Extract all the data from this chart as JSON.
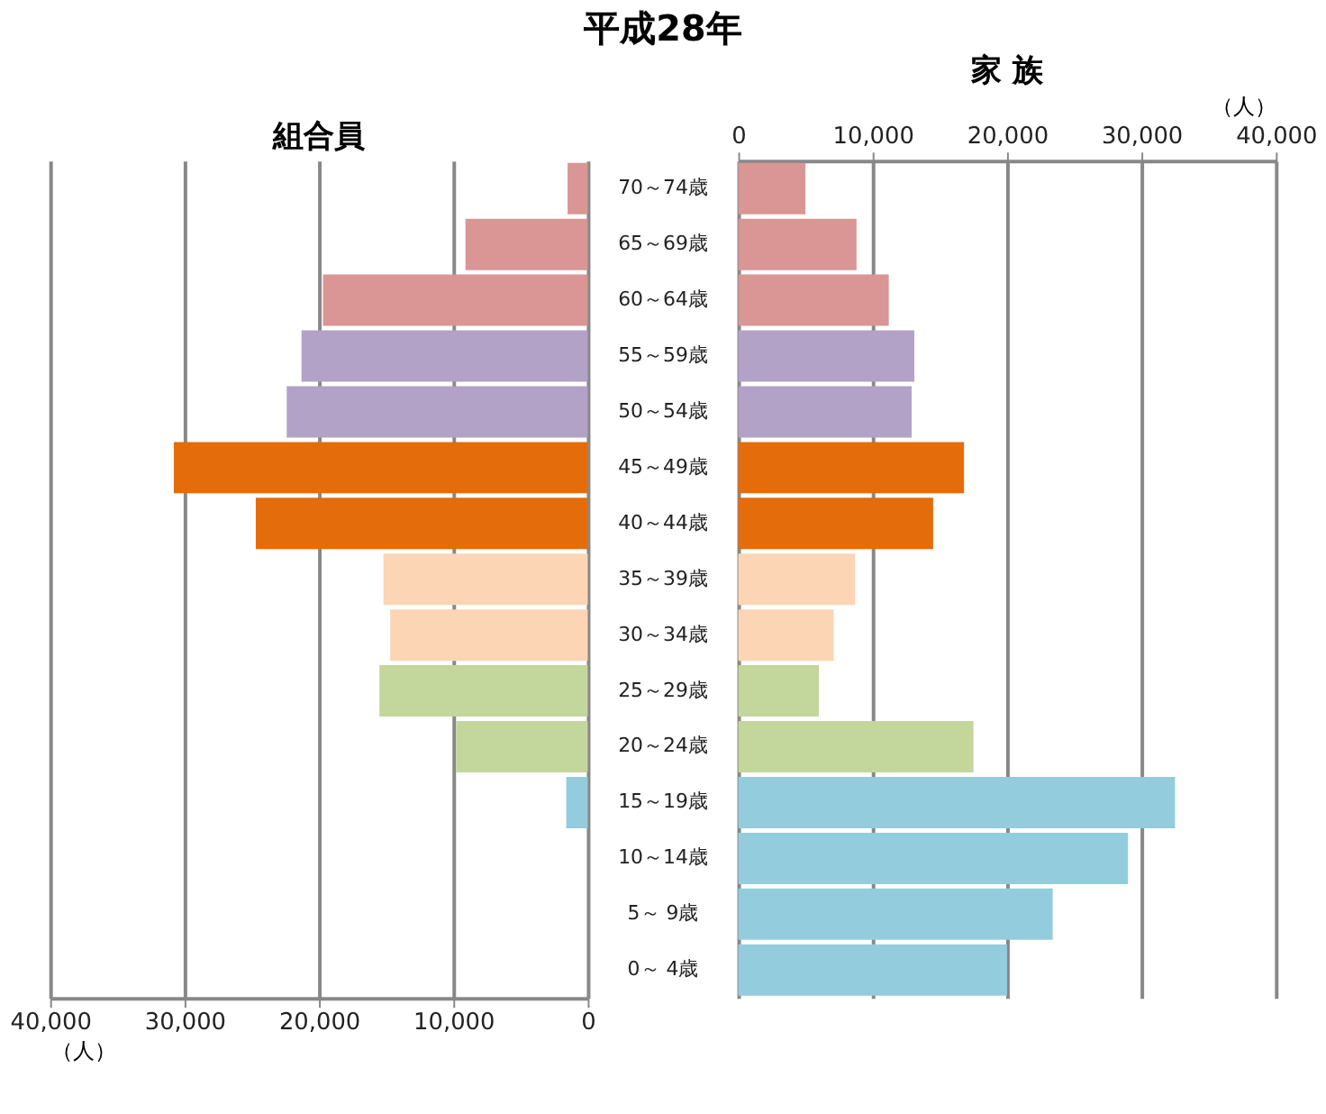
{
  "chart_data": [
    {
      "type": "bar",
      "orientation": "horizontal",
      "title": "平成28年",
      "categories": [
        "70～74歳",
        "65～69歳",
        "60～64歳",
        "55～59歳",
        "50～54歳",
        "45～49歳",
        "40～44歳",
        "35～39歳",
        "30～34歳",
        "25～29歳",
        "20～24歳",
        "15～19歳",
        "10～14歳",
        "5～ 9歳",
        "0～ 4歳"
      ],
      "series": [
        {
          "name": "組合員",
          "values": [
            1500,
            9100,
            19700,
            21300,
            22400,
            30800,
            24700,
            15200,
            14700,
            15500,
            9800,
            1600,
            null,
            null,
            null
          ],
          "colors": [
            "#d99694",
            "#d99694",
            "#d99694",
            "#b3a2c7",
            "#b3a2c7",
            "#e46c0a",
            "#e46c0a",
            "#fcd5b5",
            "#fcd5b5",
            "#c3d69b",
            "#c3d69b",
            "#93cddd",
            "#93cddd",
            "#93cddd",
            "#93cddd"
          ]
        }
      ],
      "xlim": [
        40000,
        0
      ],
      "xticks": [
        {
          "value": 40000,
          "label": "40,000"
        },
        {
          "value": 30000,
          "label": "30,000"
        },
        {
          "value": 20000,
          "label": "20,000"
        },
        {
          "value": 10000,
          "label": "10,000"
        },
        0
      ],
      "xlabel": "（人）",
      "grid": "x"
    },
    {
      "type": "bar",
      "orientation": "horizontal",
      "categories": [
        "70～74歳",
        "65～69歳",
        "60～64歳",
        "55～59歳",
        "50～54歳",
        "45～49歳",
        "40～44歳",
        "35～39歳",
        "30～34歳",
        "25～29歳",
        "20～24歳",
        "15～19歳",
        "10～14歳",
        "5～ 9歳",
        "0～ 4歳"
      ],
      "series": [
        {
          "name": "家 族",
          "values": [
            5000,
            8800,
            11200,
            13100,
            12900,
            16800,
            14500,
            8700,
            7100,
            6000,
            17500,
            32500,
            29000,
            23400,
            20000
          ],
          "colors": [
            "#d99694",
            "#d99694",
            "#d99694",
            "#b3a2c7",
            "#b3a2c7",
            "#e46c0a",
            "#e46c0a",
            "#fcd5b5",
            "#fcd5b5",
            "#c3d69b",
            "#c3d69b",
            "#93cddd",
            "#93cddd",
            "#93cddd",
            "#93cddd"
          ]
        }
      ],
      "xlim": [
        0,
        40000
      ],
      "xticks": [
        0,
        {
          "value": 10000,
          "label": "10,000"
        },
        {
          "value": 20000,
          "label": "20,000"
        },
        {
          "value": 30000,
          "label": "30,000"
        },
        {
          "value": 40000,
          "label": "40,000"
        }
      ],
      "xlabel": "（人）",
      "grid": "x",
      "tick_labels": "x"
    }
  ]
}
